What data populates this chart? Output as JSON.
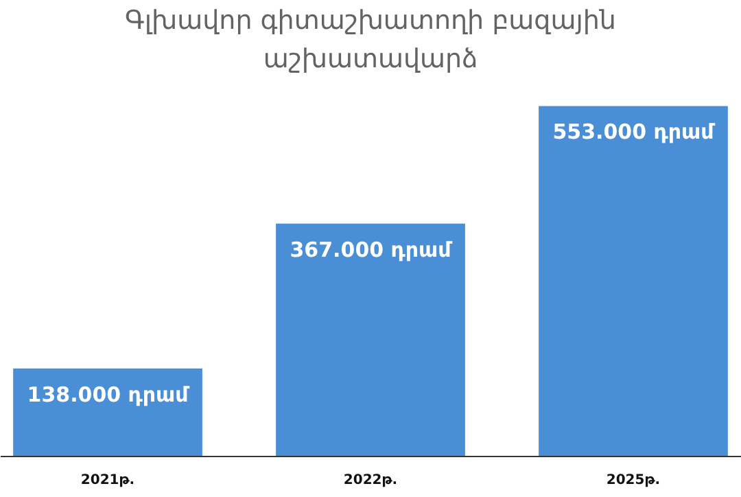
{
  "chart_data": {
    "type": "bar",
    "title": "Գլխավոր գիտաշխատողի բազային աշխատավարձ",
    "categories": [
      "2021թ.",
      "2022թ.",
      "2025թ."
    ],
    "values": [
      138000,
      367000,
      553000
    ],
    "value_labels": [
      "138.000 դրամ",
      "367.000 դրամ",
      "553.000 դրամ"
    ],
    "color": "#4a8fd6"
  }
}
